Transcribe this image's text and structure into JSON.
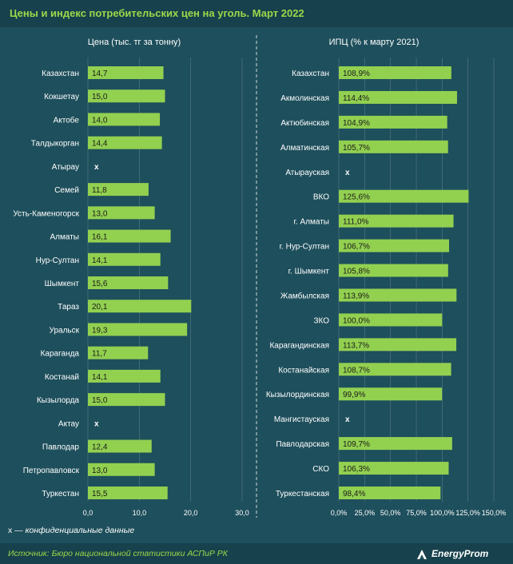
{
  "title": "Цены и индекс потребительских цен на уголь. Март 2022",
  "footnote": {
    "symbol": "х",
    "text": " — конфиденциальные данные"
  },
  "source": "Источник: Бюро национальной статистики АСПиР РК",
  "brand": "EnergyProm",
  "colors": {
    "background": "#1e4f5c",
    "bar": "#92d050",
    "title": "#9bd84a",
    "text": "#ffffff"
  },
  "chart_data": [
    {
      "type": "bar",
      "orientation": "horizontal",
      "title": "Цена (тыс. тг за тонну)",
      "categories": [
        "Казахстан",
        "Кокшетау",
        "Актобе",
        "Талдыкорган",
        "Атырау",
        "Семей",
        "Усть-Каменогорск",
        "Алматы",
        "Нур-Султан",
        "Шымкент",
        "Тараз",
        "Уральск",
        "Караганда",
        "Костанай",
        "Кызылорда",
        "Актау",
        "Павлодар",
        "Петропавловск",
        "Туркестан"
      ],
      "values": [
        14.7,
        15.0,
        14.0,
        14.4,
        null,
        11.8,
        13.0,
        16.1,
        14.1,
        15.6,
        20.1,
        19.3,
        11.7,
        14.1,
        15.0,
        null,
        12.4,
        13.0,
        15.5
      ],
      "labels": [
        "14,7",
        "15,0",
        "14,0",
        "14,4",
        "х",
        "11,8",
        "13,0",
        "16,1",
        "14,1",
        "15,6",
        "20,1",
        "19,3",
        "11,7",
        "14,1",
        "15,0",
        "х",
        "12,4",
        "13,0",
        "15,5"
      ],
      "xlim": [
        0,
        30
      ],
      "ticks": [
        0,
        10,
        20,
        30
      ],
      "tick_labels": [
        "0,0",
        "10,0",
        "20,0",
        "30,0"
      ]
    },
    {
      "type": "bar",
      "orientation": "horizontal",
      "title": "ИПЦ (% к марту 2021)",
      "categories": [
        "Казахстан",
        "Акмолинская",
        "Актюбинская",
        "Алматинская",
        "Атырауская",
        "ВКО",
        "г. Алматы",
        "г. Нур-Султан",
        "г. Шымкент",
        "Жамбылская",
        "ЗКО",
        "Карагандинская",
        "Костанайская",
        "Кызылординская",
        "Мангистауская",
        "Павлодарская",
        "СКО",
        "Туркестанская"
      ],
      "values": [
        108.9,
        114.4,
        104.9,
        105.7,
        null,
        125.6,
        111.0,
        106.7,
        105.8,
        113.9,
        100.0,
        113.7,
        108.7,
        99.9,
        null,
        109.7,
        106.3,
        98.4
      ],
      "labels": [
        "108,9%",
        "114,4%",
        "104,9%",
        "105,7%",
        "х",
        "125,6%",
        "111,0%",
        "106,7%",
        "105,8%",
        "113,9%",
        "100,0%",
        "113,7%",
        "108,7%",
        "99,9%",
        "х",
        "109,7%",
        "106,3%",
        "98,4%"
      ],
      "xlim": [
        0,
        150
      ],
      "ticks": [
        0,
        25,
        50,
        75,
        100,
        125,
        150
      ],
      "tick_labels": [
        "0,0%",
        "25,0%",
        "50,0%",
        "75,0%",
        "100,0%",
        "125,0%",
        "150,0%"
      ]
    }
  ]
}
